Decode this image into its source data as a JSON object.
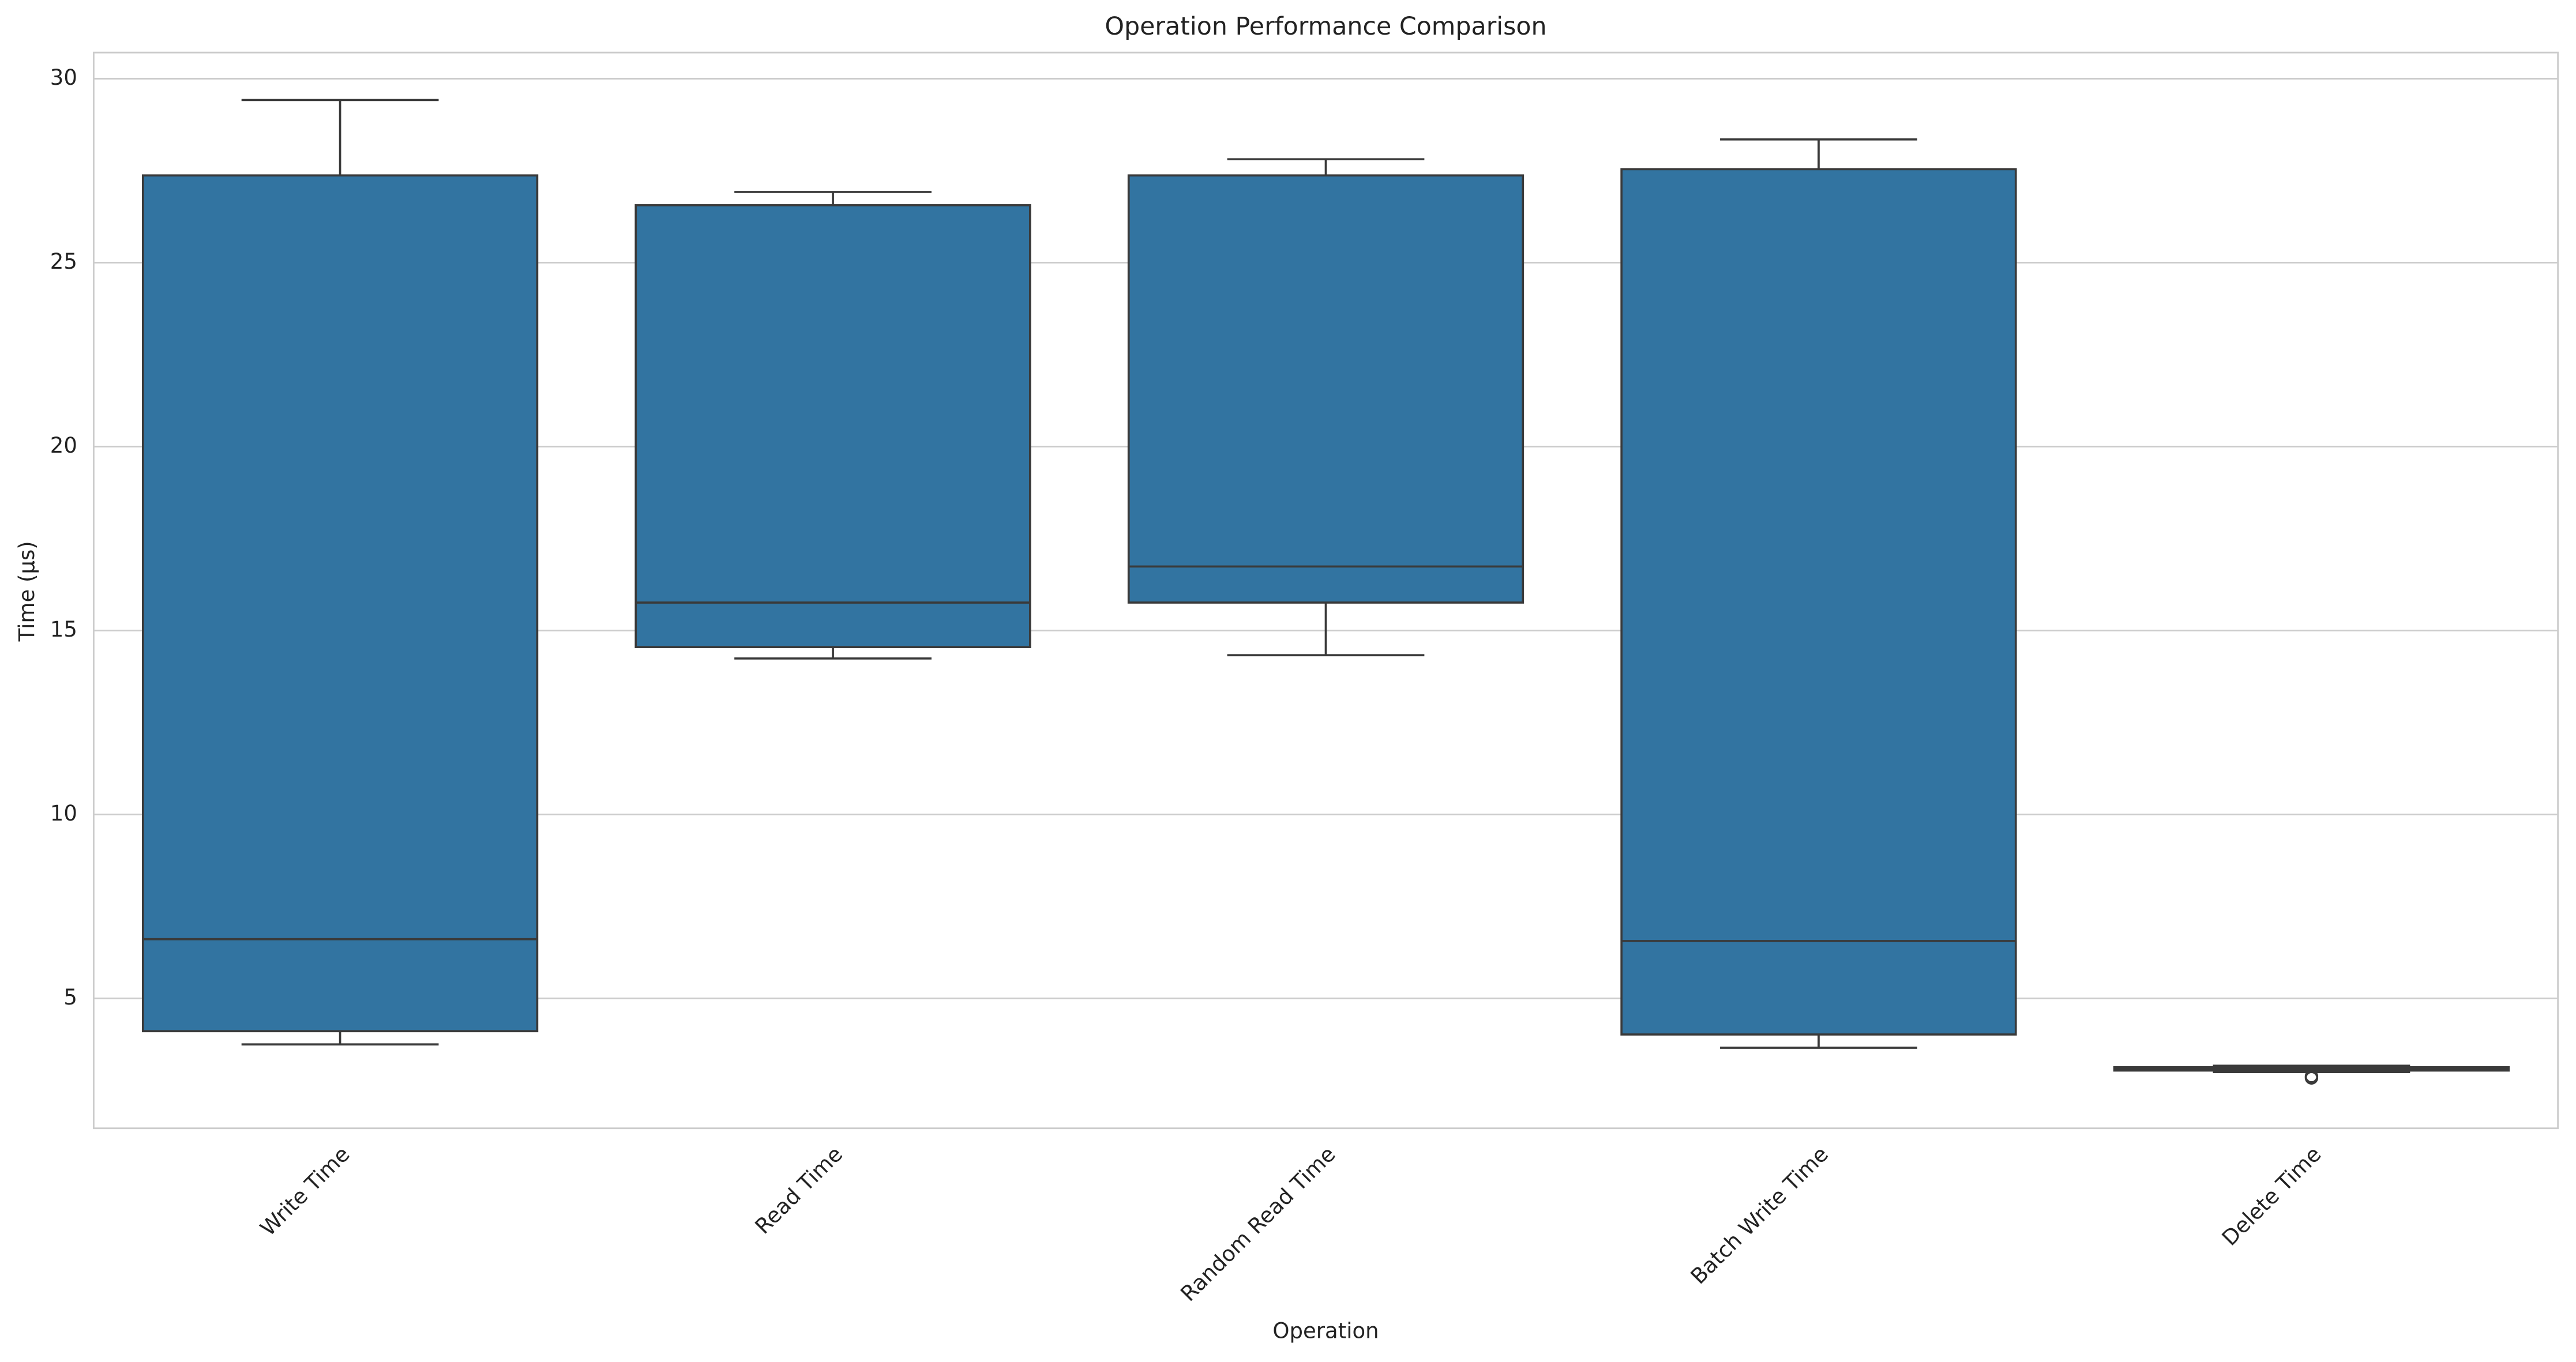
{
  "chart_data": {
    "type": "box",
    "title": "Operation Performance Comparison",
    "x_label": "Operation",
    "y_label": "Time (µs)",
    "categories": [
      "Write Time",
      "Read Time",
      "Random Read Time",
      "Batch Write Time",
      "Delete Time"
    ],
    "color": "#3274a1",
    "whislo": [
      3.75,
      14.24,
      14.33,
      3.66,
      3.0
    ],
    "q1": [
      4.11,
      14.55,
      15.76,
      4.02,
      3.04
    ],
    "median": [
      6.61,
      15.76,
      16.74,
      6.56,
      3.08
    ],
    "q3": [
      27.37,
      26.56,
      27.37,
      27.54,
      3.13
    ],
    "whishi": [
      29.42,
      26.92,
      27.81,
      28.35,
      3.17
    ],
    "outliers": [
      [],
      [],
      [],
      [],
      [
        2.84,
        2.88
      ]
    ],
    "ylim": [
      1.47,
      30.71
    ],
    "yticks": [
      5,
      10,
      15,
      20,
      25,
      30
    ],
    "grid": true
  }
}
